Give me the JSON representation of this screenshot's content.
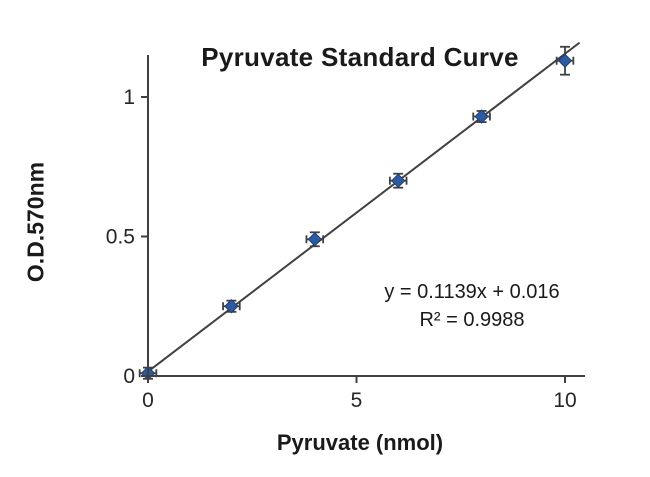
{
  "chart_data": {
    "type": "scatter",
    "title": "Pyruvate Standard Curve",
    "xlabel": "Pyruvate (nmol)",
    "ylabel": "O.D.570nm",
    "x": [
      0,
      2,
      4,
      6,
      8,
      10
    ],
    "y": [
      0.01,
      0.25,
      0.49,
      0.7,
      0.93,
      1.13
    ],
    "yerr": [
      0.02,
      0.02,
      0.025,
      0.025,
      0.02,
      0.05
    ],
    "xerr": 0.2,
    "xticks": [
      0,
      5,
      10
    ],
    "yticks": [
      0,
      0.5,
      1
    ],
    "xlim": [
      0,
      10.5
    ],
    "ylim": [
      0,
      1.2
    ],
    "grid": false,
    "legend": "none",
    "trendline": {
      "slope": 0.1139,
      "intercept": 0.016,
      "equation": "y = 0.1139x + 0.016",
      "r_squared": "R² = 0.9988"
    },
    "colors": {
      "marker": "#2e5aa2",
      "marker_outline": "#1e3f70",
      "line": "#404040",
      "axis": "#404040",
      "error_bar": "#404040",
      "text": "#1a1a1a"
    }
  }
}
